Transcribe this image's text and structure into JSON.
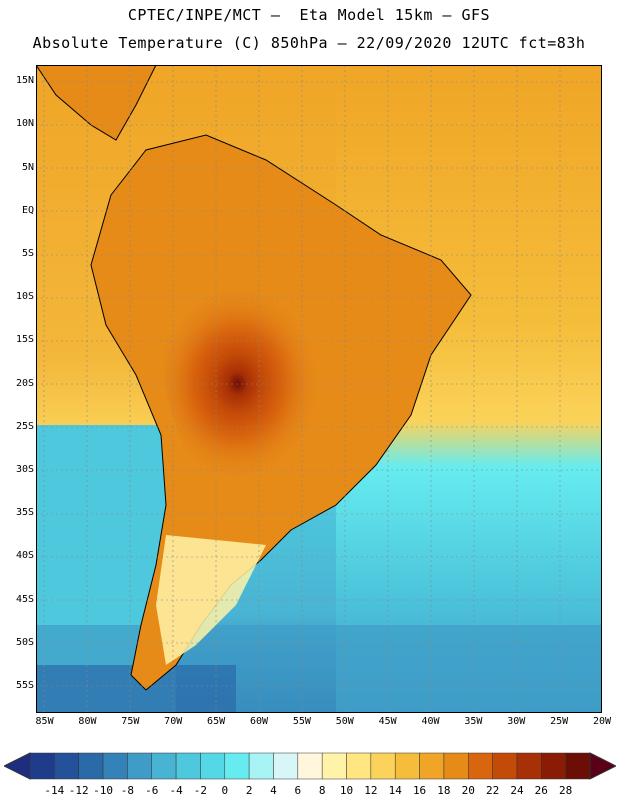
{
  "header": {
    "line1": "CPTEC/INPE/MCT –  Eta Model 15km – GFS",
    "line2": "Absolute Temperature (C) 850hPa – 22/09/2020 12UTC fct=83h"
  },
  "map": {
    "region": "South America",
    "lat_labels": [
      "15N",
      "10N",
      "5N",
      "EQ",
      "5S",
      "10S",
      "15S",
      "20S",
      "25S",
      "30S",
      "35S",
      "40S",
      "45S",
      "50S",
      "55S"
    ],
    "lat_values": [
      15,
      10,
      5,
      0,
      -5,
      -10,
      -15,
      -20,
      -25,
      -30,
      -35,
      -40,
      -45,
      -50,
      -55
    ],
    "lon_labels": [
      "85W",
      "80W",
      "75W",
      "70W",
      "65W",
      "60W",
      "55W",
      "50W",
      "45W",
      "40W",
      "35W",
      "30W",
      "25W",
      "20W"
    ],
    "lon_values": [
      -85,
      -80,
      -75,
      -70,
      -65,
      -60,
      -55,
      -50,
      -45,
      -40,
      -35,
      -30,
      -25,
      -20
    ],
    "lat_range": [
      -58,
      17
    ],
    "lon_range": [
      -86,
      -20
    ]
  },
  "colorbar": {
    "labels": [
      "-14",
      "-12",
      "-10",
      "-8",
      "-6",
      "-4",
      "-2",
      "0",
      "2",
      "4",
      "6",
      "8",
      "10",
      "12",
      "14",
      "16",
      "18",
      "20",
      "22",
      "24",
      "26",
      "28"
    ],
    "colors": [
      "#1f3c8a",
      "#24529a",
      "#2a6aa9",
      "#3483b8",
      "#3f9cc7",
      "#49b3d3",
      "#4ec8dd",
      "#55d8e6",
      "#66ecf0",
      "#a8f4f5",
      "#d8f6f7",
      "#fff6dc",
      "#fff3a8",
      "#ffe680",
      "#fbd35a",
      "#f5bd3a",
      "#f0a526",
      "#e68a18",
      "#d9650e",
      "#c44a08",
      "#a83006",
      "#8a1c05",
      "#6b0f06"
    ],
    "under_color": "#1f2d80",
    "over_color": "#5a0018"
  }
}
